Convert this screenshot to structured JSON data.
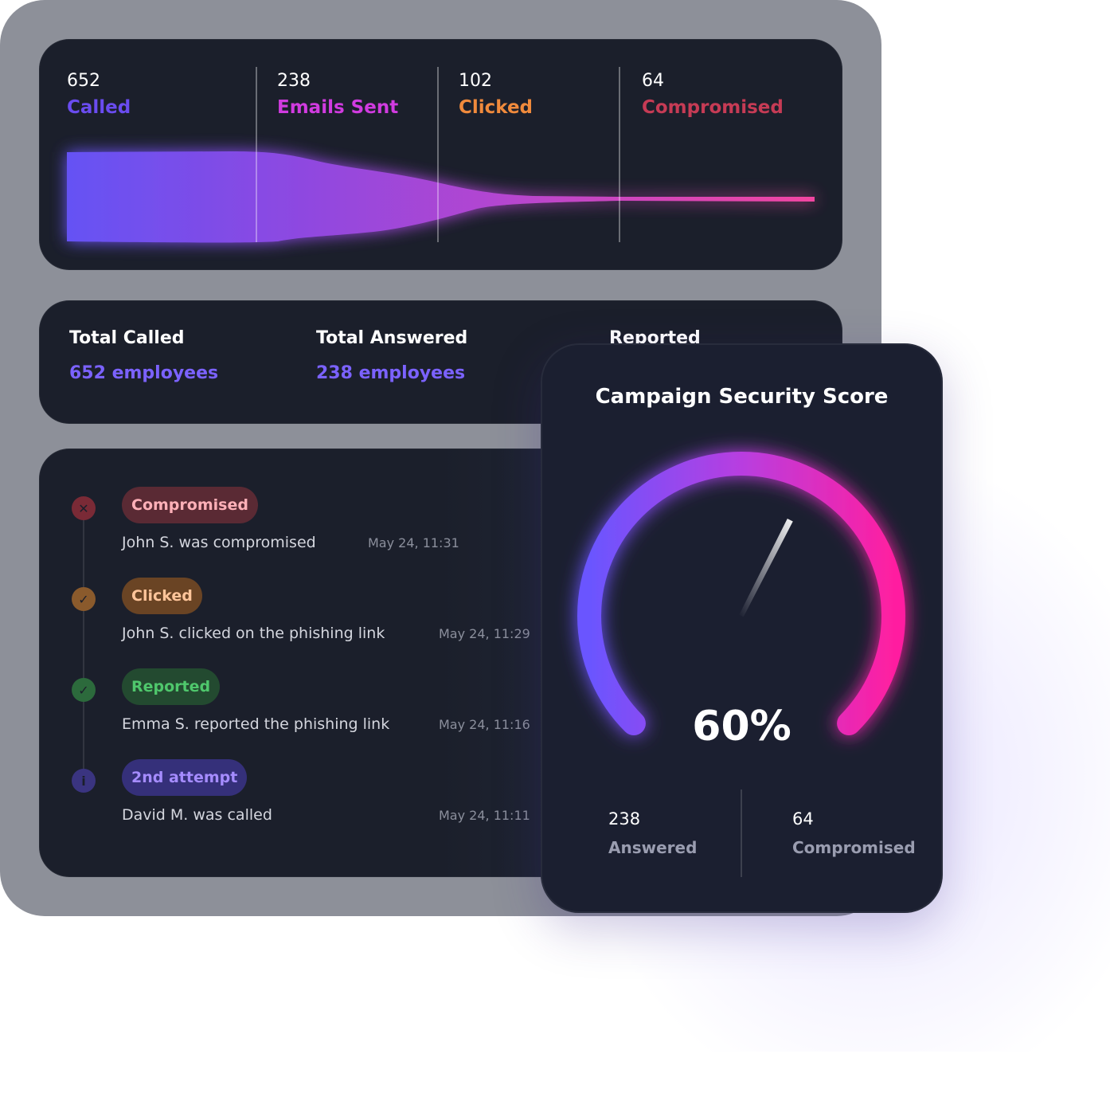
{
  "funnel": {
    "stages": [
      {
        "count": "652",
        "label": "Called",
        "color": "#6a4cf0"
      },
      {
        "count": "238",
        "label": "Emails Sent",
        "color": "#d13be0"
      },
      {
        "count": "102",
        "label": "Clicked",
        "color": "#f08a3c"
      },
      {
        "count": "64",
        "label": "Compromised",
        "color": "#c63b55"
      }
    ]
  },
  "totals": {
    "called_title": "Total Called",
    "called_value": "652 employees",
    "answered_title": "Total Answered",
    "answered_value": "238 employees",
    "reported_title": "Reported"
  },
  "activity": [
    {
      "badge": "Compromised",
      "text": "John S. was compromised",
      "time": "May 24, 11:31",
      "icon": "x-circle-icon",
      "status": "compromised"
    },
    {
      "badge": "Clicked",
      "text": "John S. clicked on the phishing link",
      "time": "May 24, 11:29",
      "icon": "check-circle-icon",
      "status": "clicked"
    },
    {
      "badge": "Reported",
      "text": "Emma S. reported the phishing link",
      "time": "May 24, 11:16",
      "icon": "check-circle-icon",
      "status": "reported"
    },
    {
      "badge": "2nd attempt",
      "text": "David M. was called",
      "time": "May 24, 11:11",
      "icon": "info-circle-icon",
      "status": "attempt"
    }
  ],
  "score": {
    "title": "Campaign Security Score",
    "value": "60%",
    "fraction": 0.6,
    "answered_count": "238",
    "answered_label": "Answered",
    "compromised_count": "64",
    "compromised_label": "Compromised"
  },
  "colors": {
    "card": "#1b1f2b",
    "backdrop": "#8d9099",
    "accent_purple": "#6a4cf0",
    "accent_pink": "#ff1fa0"
  }
}
